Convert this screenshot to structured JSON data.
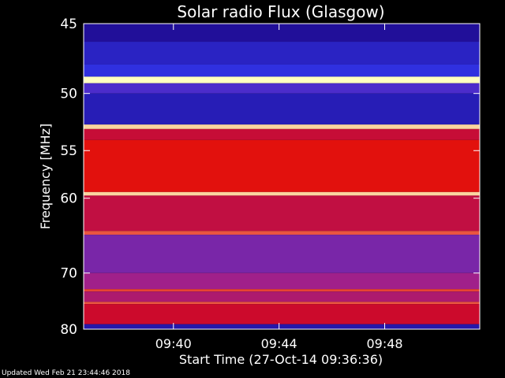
{
  "chart_data": {
    "type": "heatmap",
    "title": "Solar radio Flux (Glasgow)",
    "xlabel": "Start Time (27-Oct-14 09:36:36)",
    "ylabel": "Frequency [MHz]",
    "x_ticks": [
      "09:40",
      "09:44",
      "09:48"
    ],
    "x_tick_minutes": [
      3.4,
      7.4,
      11.4
    ],
    "xlim_minutes": [
      0,
      15
    ],
    "y_ticks": [
      45,
      50,
      55,
      60,
      70,
      80
    ],
    "ylim": [
      45,
      80
    ],
    "y_scale": "reciprocal",
    "colormap": {
      "low": "#1a0078",
      "mid_low": "#3030e0",
      "mid": "#a0208a",
      "high": "#e00000",
      "peak": "#ffffc0"
    },
    "bands": [
      {
        "f_start": 45.0,
        "f_end": 46.2,
        "level": 0.08
      },
      {
        "f_start": 46.2,
        "f_end": 47.8,
        "level": 0.18
      },
      {
        "f_start": 47.8,
        "f_end": 48.7,
        "level": 0.25
      },
      {
        "f_start": 48.7,
        "f_end": 49.2,
        "level": 1.0
      },
      {
        "f_start": 49.2,
        "f_end": 50.0,
        "level": 0.3
      },
      {
        "f_start": 50.0,
        "f_end": 52.6,
        "level": 0.15
      },
      {
        "f_start": 52.6,
        "f_end": 53.0,
        "level": 0.95
      },
      {
        "f_start": 53.0,
        "f_end": 54.0,
        "level": 0.6
      },
      {
        "f_start": 54.0,
        "f_end": 59.3,
        "level": 0.72
      },
      {
        "f_start": 59.3,
        "f_end": 59.7,
        "level": 0.95
      },
      {
        "f_start": 59.7,
        "f_end": 64.0,
        "level": 0.58
      },
      {
        "f_start": 64.0,
        "f_end": 64.5,
        "level": 0.8
      },
      {
        "f_start": 64.5,
        "f_end": 70.0,
        "level": 0.38
      },
      {
        "f_start": 70.0,
        "f_end": 72.6,
        "level": 0.45
      },
      {
        "f_start": 72.6,
        "f_end": 73.0,
        "level": 0.78
      },
      {
        "f_start": 73.0,
        "f_end": 74.8,
        "level": 0.5
      },
      {
        "f_start": 74.8,
        "f_end": 75.2,
        "level": 0.8
      },
      {
        "f_start": 75.2,
        "f_end": 79.0,
        "level": 0.62
      },
      {
        "f_start": 79.0,
        "f_end": 80.0,
        "level": 0.12
      }
    ]
  },
  "footer": {
    "updated": "Updated Wed Feb 21 23:44:46 2018"
  }
}
